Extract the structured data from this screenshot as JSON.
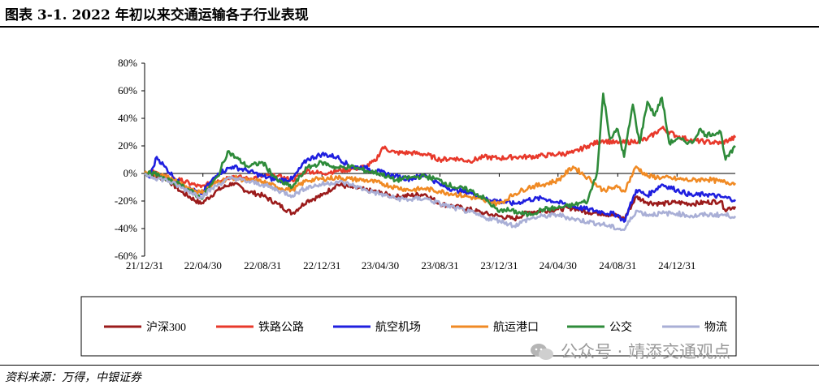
{
  "figure": {
    "title": "图表 3-1. 2022 年初以来交通运输各子行业表现",
    "source": "资料来源：万得，中银证券",
    "watermark": "公众号 · 靖添交通观点"
  },
  "chart_data": {
    "type": "line",
    "title": "",
    "xlabel": "",
    "ylabel": "",
    "ylim": [
      -0.6,
      0.8
    ],
    "yticks": [
      0.8,
      0.6,
      0.4,
      0.2,
      0.0,
      -0.2,
      -0.4,
      -0.6
    ],
    "ytick_labels": [
      "80%",
      "60%",
      "40%",
      "20%",
      "0%",
      "-20%",
      "-40%",
      "-60%"
    ],
    "xlim": [
      "2021-12-31",
      "2025-04-30"
    ],
    "xticks": [
      "2021-12-31",
      "2022-04-30",
      "2022-08-31",
      "2022-12-31",
      "2023-04-30",
      "2023-08-31",
      "2023-12-31",
      "2024-04-30",
      "2024-08-31",
      "2024-12-31"
    ],
    "xtick_labels": [
      "21/12/31",
      "22/04/30",
      "22/08/31",
      "22/12/31",
      "23/04/30",
      "23/08/31",
      "23/12/31",
      "24/04/30",
      "24/08/31",
      "24/12/31"
    ],
    "grid": false,
    "legend_position": "bottom",
    "series": [
      {
        "name": "沪深300",
        "color": "#9b1b1b",
        "points": [
          [
            "2021-12-31",
            0.0
          ],
          [
            "2022-01-20",
            -0.02
          ],
          [
            "2022-02-15",
            -0.04
          ],
          [
            "2022-03-15",
            -0.13
          ],
          [
            "2022-04-26",
            -0.22
          ],
          [
            "2022-05-31",
            -0.12
          ],
          [
            "2022-06-30",
            -0.07
          ],
          [
            "2022-07-31",
            -0.13
          ],
          [
            "2022-08-31",
            -0.16
          ],
          [
            "2022-09-30",
            -0.22
          ],
          [
            "2022-10-31",
            -0.29
          ],
          [
            "2022-11-30",
            -0.2
          ],
          [
            "2022-12-31",
            -0.16
          ],
          [
            "2023-01-31",
            -0.08
          ],
          [
            "2023-02-28",
            -0.1
          ],
          [
            "2023-03-31",
            -0.12
          ],
          [
            "2023-04-30",
            -0.14
          ],
          [
            "2023-05-31",
            -0.17
          ],
          [
            "2023-06-30",
            -0.16
          ],
          [
            "2023-07-31",
            -0.15
          ],
          [
            "2023-08-31",
            -0.22
          ],
          [
            "2023-09-30",
            -0.24
          ],
          [
            "2023-10-31",
            -0.26
          ],
          [
            "2023-11-30",
            -0.29
          ],
          [
            "2023-12-31",
            -0.31
          ],
          [
            "2024-01-31",
            -0.33
          ],
          [
            "2024-02-29",
            -0.28
          ],
          [
            "2024-03-31",
            -0.27
          ],
          [
            "2024-04-30",
            -0.26
          ],
          [
            "2024-05-31",
            -0.25
          ],
          [
            "2024-06-30",
            -0.28
          ],
          [
            "2024-07-31",
            -0.29
          ],
          [
            "2024-08-31",
            -0.31
          ],
          [
            "2024-09-13",
            -0.33
          ],
          [
            "2024-10-08",
            -0.17
          ],
          [
            "2024-10-31",
            -0.21
          ],
          [
            "2024-11-30",
            -0.22
          ],
          [
            "2024-12-31",
            -0.21
          ],
          [
            "2025-01-31",
            -0.22
          ],
          [
            "2025-02-28",
            -0.21
          ],
          [
            "2025-03-31",
            -0.2
          ],
          [
            "2025-04-08",
            -0.26
          ],
          [
            "2025-04-30",
            -0.24
          ]
        ]
      },
      {
        "name": "铁路公路",
        "color": "#e8392b",
        "points": [
          [
            "2021-12-31",
            0.0
          ],
          [
            "2022-01-20",
            0.01
          ],
          [
            "2022-02-15",
            -0.03
          ],
          [
            "2022-03-15",
            -0.05
          ],
          [
            "2022-04-26",
            -0.1
          ],
          [
            "2022-05-31",
            -0.05
          ],
          [
            "2022-06-30",
            -0.02
          ],
          [
            "2022-07-31",
            -0.04
          ],
          [
            "2022-08-31",
            -0.02
          ],
          [
            "2022-09-30",
            -0.02
          ],
          [
            "2022-10-31",
            -0.05
          ],
          [
            "2022-11-30",
            0.02
          ],
          [
            "2022-12-31",
            0.0
          ],
          [
            "2023-01-31",
            0.02
          ],
          [
            "2023-02-28",
            0.03
          ],
          [
            "2023-03-31",
            0.05
          ],
          [
            "2023-04-20",
            0.09
          ],
          [
            "2023-05-05",
            0.19
          ],
          [
            "2023-05-31",
            0.15
          ],
          [
            "2023-06-30",
            0.15
          ],
          [
            "2023-07-31",
            0.14
          ],
          [
            "2023-08-31",
            0.1
          ],
          [
            "2023-09-30",
            0.11
          ],
          [
            "2023-10-31",
            0.09
          ],
          [
            "2023-11-30",
            0.12
          ],
          [
            "2023-12-31",
            0.11
          ],
          [
            "2024-01-31",
            0.12
          ],
          [
            "2024-02-29",
            0.12
          ],
          [
            "2024-03-31",
            0.13
          ],
          [
            "2024-04-30",
            0.14
          ],
          [
            "2024-05-31",
            0.15
          ],
          [
            "2024-06-30",
            0.2
          ],
          [
            "2024-07-31",
            0.24
          ],
          [
            "2024-08-31",
            0.22
          ],
          [
            "2024-09-30",
            0.23
          ],
          [
            "2024-10-31",
            0.25
          ],
          [
            "2024-11-30",
            0.33
          ],
          [
            "2024-12-31",
            0.27
          ],
          [
            "2025-01-31",
            0.24
          ],
          [
            "2025-02-28",
            0.23
          ],
          [
            "2025-03-31",
            0.22
          ],
          [
            "2025-04-30",
            0.26
          ]
        ]
      },
      {
        "name": "航空机场",
        "color": "#1f1fdf",
        "points": [
          [
            "2021-12-31",
            0.0
          ],
          [
            "2022-01-10",
            -0.03
          ],
          [
            "2022-01-25",
            0.12
          ],
          [
            "2022-02-10",
            0.05
          ],
          [
            "2022-03-15",
            -0.08
          ],
          [
            "2022-04-26",
            -0.15
          ],
          [
            "2022-05-31",
            0.0
          ],
          [
            "2022-06-30",
            0.05
          ],
          [
            "2022-07-31",
            0.02
          ],
          [
            "2022-08-31",
            -0.02
          ],
          [
            "2022-09-30",
            -0.05
          ],
          [
            "2022-10-31",
            -0.04
          ],
          [
            "2022-11-30",
            0.1
          ],
          [
            "2022-12-31",
            0.14
          ],
          [
            "2023-01-31",
            0.12
          ],
          [
            "2023-02-28",
            0.05
          ],
          [
            "2023-03-31",
            0.04
          ],
          [
            "2023-04-30",
            0.01
          ],
          [
            "2023-05-31",
            -0.02
          ],
          [
            "2023-06-30",
            -0.04
          ],
          [
            "2023-07-31",
            -0.01
          ],
          [
            "2023-08-31",
            -0.08
          ],
          [
            "2023-09-30",
            -0.12
          ],
          [
            "2023-10-31",
            -0.14
          ],
          [
            "2023-11-30",
            -0.18
          ],
          [
            "2023-12-31",
            -0.2
          ],
          [
            "2024-01-31",
            -0.22
          ],
          [
            "2024-02-29",
            -0.19
          ],
          [
            "2024-03-31",
            -0.18
          ],
          [
            "2024-04-30",
            -0.21
          ],
          [
            "2024-05-31",
            -0.24
          ],
          [
            "2024-06-30",
            -0.26
          ],
          [
            "2024-07-31",
            -0.28
          ],
          [
            "2024-08-31",
            -0.3
          ],
          [
            "2024-09-13",
            -0.35
          ],
          [
            "2024-10-08",
            -0.12
          ],
          [
            "2024-10-31",
            -0.16
          ],
          [
            "2024-11-30",
            -0.08
          ],
          [
            "2024-12-31",
            -0.12
          ],
          [
            "2025-01-31",
            -0.16
          ],
          [
            "2025-02-28",
            -0.15
          ],
          [
            "2025-03-31",
            -0.17
          ],
          [
            "2025-04-30",
            -0.19
          ]
        ]
      },
      {
        "name": "航运港口",
        "color": "#f08a24",
        "points": [
          [
            "2021-12-31",
            0.0
          ],
          [
            "2022-01-20",
            0.0
          ],
          [
            "2022-02-15",
            -0.02
          ],
          [
            "2022-03-15",
            -0.08
          ],
          [
            "2022-04-26",
            -0.14
          ],
          [
            "2022-05-31",
            -0.06
          ],
          [
            "2022-06-30",
            -0.03
          ],
          [
            "2022-07-31",
            -0.05
          ],
          [
            "2022-08-31",
            -0.06
          ],
          [
            "2022-09-30",
            -0.1
          ],
          [
            "2022-10-31",
            -0.12
          ],
          [
            "2022-11-30",
            -0.05
          ],
          [
            "2022-12-31",
            -0.04
          ],
          [
            "2023-01-31",
            -0.03
          ],
          [
            "2023-02-28",
            -0.04
          ],
          [
            "2023-03-31",
            -0.05
          ],
          [
            "2023-04-30",
            -0.07
          ],
          [
            "2023-05-31",
            -0.1
          ],
          [
            "2023-06-30",
            -0.12
          ],
          [
            "2023-07-31",
            -0.11
          ],
          [
            "2023-08-31",
            -0.13
          ],
          [
            "2023-09-30",
            -0.15
          ],
          [
            "2023-10-31",
            -0.17
          ],
          [
            "2023-11-30",
            -0.2
          ],
          [
            "2023-12-31",
            -0.22
          ],
          [
            "2024-01-31",
            -0.15
          ],
          [
            "2024-02-29",
            -0.1
          ],
          [
            "2024-03-31",
            -0.08
          ],
          [
            "2024-04-30",
            -0.05
          ],
          [
            "2024-05-31",
            0.05
          ],
          [
            "2024-06-30",
            -0.03
          ],
          [
            "2024-07-31",
            -0.12
          ],
          [
            "2024-08-31",
            -0.1
          ],
          [
            "2024-09-13",
            -0.13
          ],
          [
            "2024-10-08",
            0.05
          ],
          [
            "2024-10-31",
            -0.02
          ],
          [
            "2024-11-30",
            -0.03
          ],
          [
            "2024-12-31",
            -0.04
          ],
          [
            "2025-01-31",
            -0.05
          ],
          [
            "2025-02-28",
            -0.04
          ],
          [
            "2025-03-31",
            -0.06
          ],
          [
            "2025-04-30",
            -0.07
          ]
        ]
      },
      {
        "name": "公交",
        "color": "#2e8b3a",
        "points": [
          [
            "2021-12-31",
            0.0
          ],
          [
            "2022-01-20",
            0.0
          ],
          [
            "2022-02-15",
            -0.05
          ],
          [
            "2022-03-15",
            -0.08
          ],
          [
            "2022-04-26",
            -0.18
          ],
          [
            "2022-05-31",
            -0.02
          ],
          [
            "2022-06-20",
            0.16
          ],
          [
            "2022-07-31",
            0.05
          ],
          [
            "2022-08-31",
            0.08
          ],
          [
            "2022-09-30",
            -0.05
          ],
          [
            "2022-10-31",
            -0.1
          ],
          [
            "2022-11-30",
            0.04
          ],
          [
            "2022-12-31",
            0.08
          ],
          [
            "2023-01-31",
            0.04
          ],
          [
            "2023-02-28",
            0.05
          ],
          [
            "2023-03-31",
            0.02
          ],
          [
            "2023-04-30",
            0.0
          ],
          [
            "2023-05-31",
            -0.05
          ],
          [
            "2023-06-30",
            -0.03
          ],
          [
            "2023-07-31",
            -0.02
          ],
          [
            "2023-08-31",
            -0.05
          ],
          [
            "2023-09-30",
            -0.1
          ],
          [
            "2023-10-31",
            -0.12
          ],
          [
            "2023-11-30",
            -0.18
          ],
          [
            "2023-12-31",
            -0.28
          ],
          [
            "2024-01-10",
            -0.26
          ],
          [
            "2024-02-29",
            -0.3
          ],
          [
            "2024-03-31",
            -0.26
          ],
          [
            "2024-04-30",
            -0.25
          ],
          [
            "2024-05-31",
            -0.23
          ],
          [
            "2024-06-30",
            -0.2
          ],
          [
            "2024-07-20",
            0.02
          ],
          [
            "2024-08-01",
            0.58
          ],
          [
            "2024-08-15",
            0.25
          ],
          [
            "2024-08-31",
            0.32
          ],
          [
            "2024-09-13",
            0.12
          ],
          [
            "2024-10-01",
            0.5
          ],
          [
            "2024-10-15",
            0.22
          ],
          [
            "2024-10-31",
            0.52
          ],
          [
            "2024-11-15",
            0.42
          ],
          [
            "2024-11-30",
            0.55
          ],
          [
            "2024-12-15",
            0.22
          ],
          [
            "2024-12-31",
            0.25
          ],
          [
            "2025-01-31",
            0.22
          ],
          [
            "2025-02-15",
            0.32
          ],
          [
            "2025-02-28",
            0.28
          ],
          [
            "2025-03-31",
            0.3
          ],
          [
            "2025-04-10",
            0.1
          ],
          [
            "2025-04-30",
            0.19
          ]
        ]
      },
      {
        "name": "物流",
        "color": "#a9afd6",
        "points": [
          [
            "2021-12-31",
            0.0
          ],
          [
            "2022-01-20",
            -0.03
          ],
          [
            "2022-02-15",
            -0.05
          ],
          [
            "2022-03-15",
            -0.1
          ],
          [
            "2022-04-26",
            -0.17
          ],
          [
            "2022-05-31",
            -0.08
          ],
          [
            "2022-06-30",
            -0.03
          ],
          [
            "2022-07-31",
            -0.06
          ],
          [
            "2022-08-31",
            -0.08
          ],
          [
            "2022-09-30",
            -0.12
          ],
          [
            "2022-10-31",
            -0.16
          ],
          [
            "2022-11-30",
            -0.1
          ],
          [
            "2022-12-31",
            -0.08
          ],
          [
            "2023-01-31",
            -0.06
          ],
          [
            "2023-02-28",
            -0.08
          ],
          [
            "2023-03-31",
            -0.12
          ],
          [
            "2023-04-30",
            -0.15
          ],
          [
            "2023-05-31",
            -0.18
          ],
          [
            "2023-06-30",
            -0.19
          ],
          [
            "2023-07-31",
            -0.18
          ],
          [
            "2023-08-31",
            -0.22
          ],
          [
            "2023-09-30",
            -0.25
          ],
          [
            "2023-10-31",
            -0.28
          ],
          [
            "2023-11-30",
            -0.32
          ],
          [
            "2023-12-31",
            -0.34
          ],
          [
            "2024-01-31",
            -0.38
          ],
          [
            "2024-02-29",
            -0.33
          ],
          [
            "2024-03-31",
            -0.31
          ],
          [
            "2024-04-30",
            -0.3
          ],
          [
            "2024-05-31",
            -0.33
          ],
          [
            "2024-06-30",
            -0.35
          ],
          [
            "2024-07-31",
            -0.37
          ],
          [
            "2024-08-31",
            -0.4
          ],
          [
            "2024-09-13",
            -0.41
          ],
          [
            "2024-10-08",
            -0.27
          ],
          [
            "2024-10-31",
            -0.3
          ],
          [
            "2024-11-30",
            -0.29
          ],
          [
            "2024-12-31",
            -0.29
          ],
          [
            "2025-01-31",
            -0.31
          ],
          [
            "2025-02-28",
            -0.3
          ],
          [
            "2025-03-31",
            -0.3
          ],
          [
            "2025-04-30",
            -0.31
          ]
        ]
      }
    ]
  }
}
